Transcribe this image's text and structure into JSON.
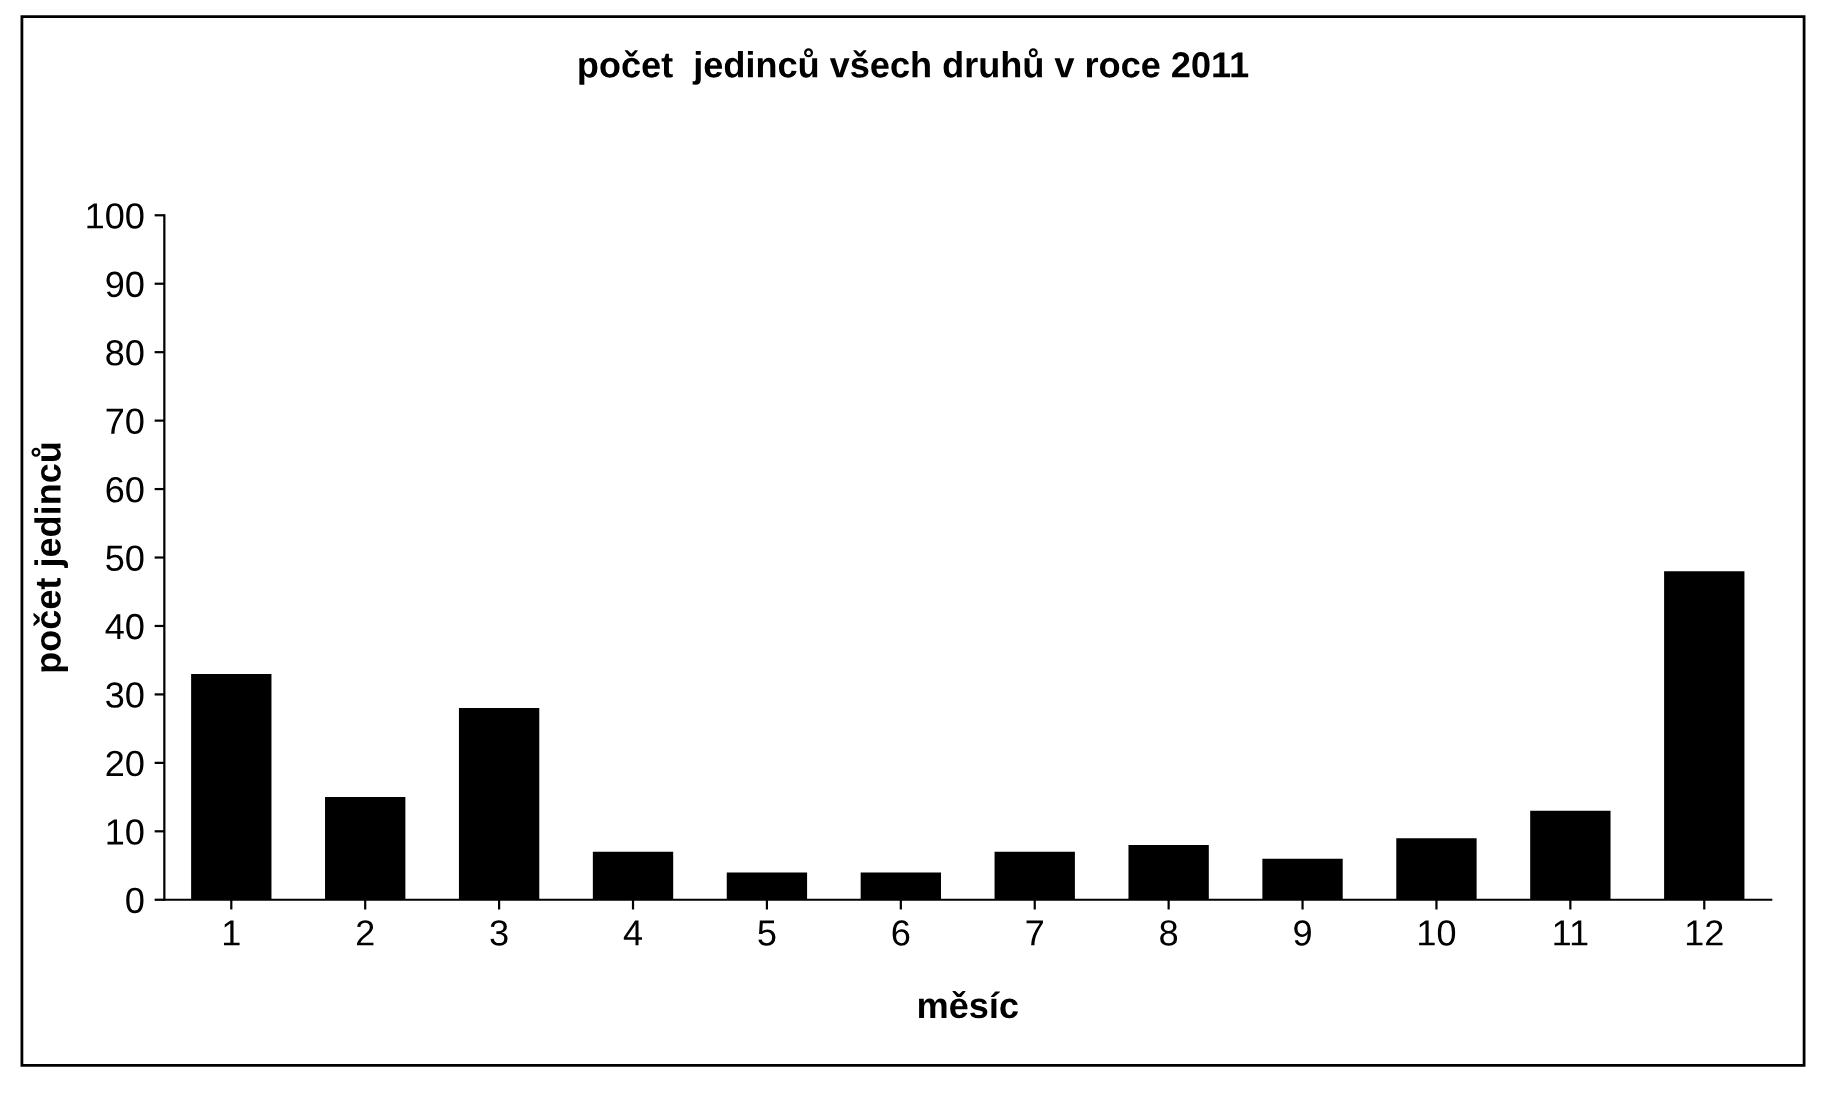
{
  "chart_data": {
    "type": "bar",
    "title": "počet  jedinců všech druhů v roce 2011",
    "xlabel": "měsíc",
    "ylabel": "počet jedinců",
    "categories": [
      "1",
      "2",
      "3",
      "4",
      "5",
      "6",
      "7",
      "8",
      "9",
      "10",
      "11",
      "12"
    ],
    "values": [
      33,
      15,
      28,
      7,
      4,
      4,
      7,
      8,
      6,
      9,
      13,
      48
    ],
    "color": "#000000",
    "ylim": [
      0,
      100
    ],
    "yticks": [
      0,
      10,
      20,
      30,
      40,
      50,
      60,
      70,
      80,
      90,
      100
    ],
    "grid": false,
    "legend": false
  }
}
